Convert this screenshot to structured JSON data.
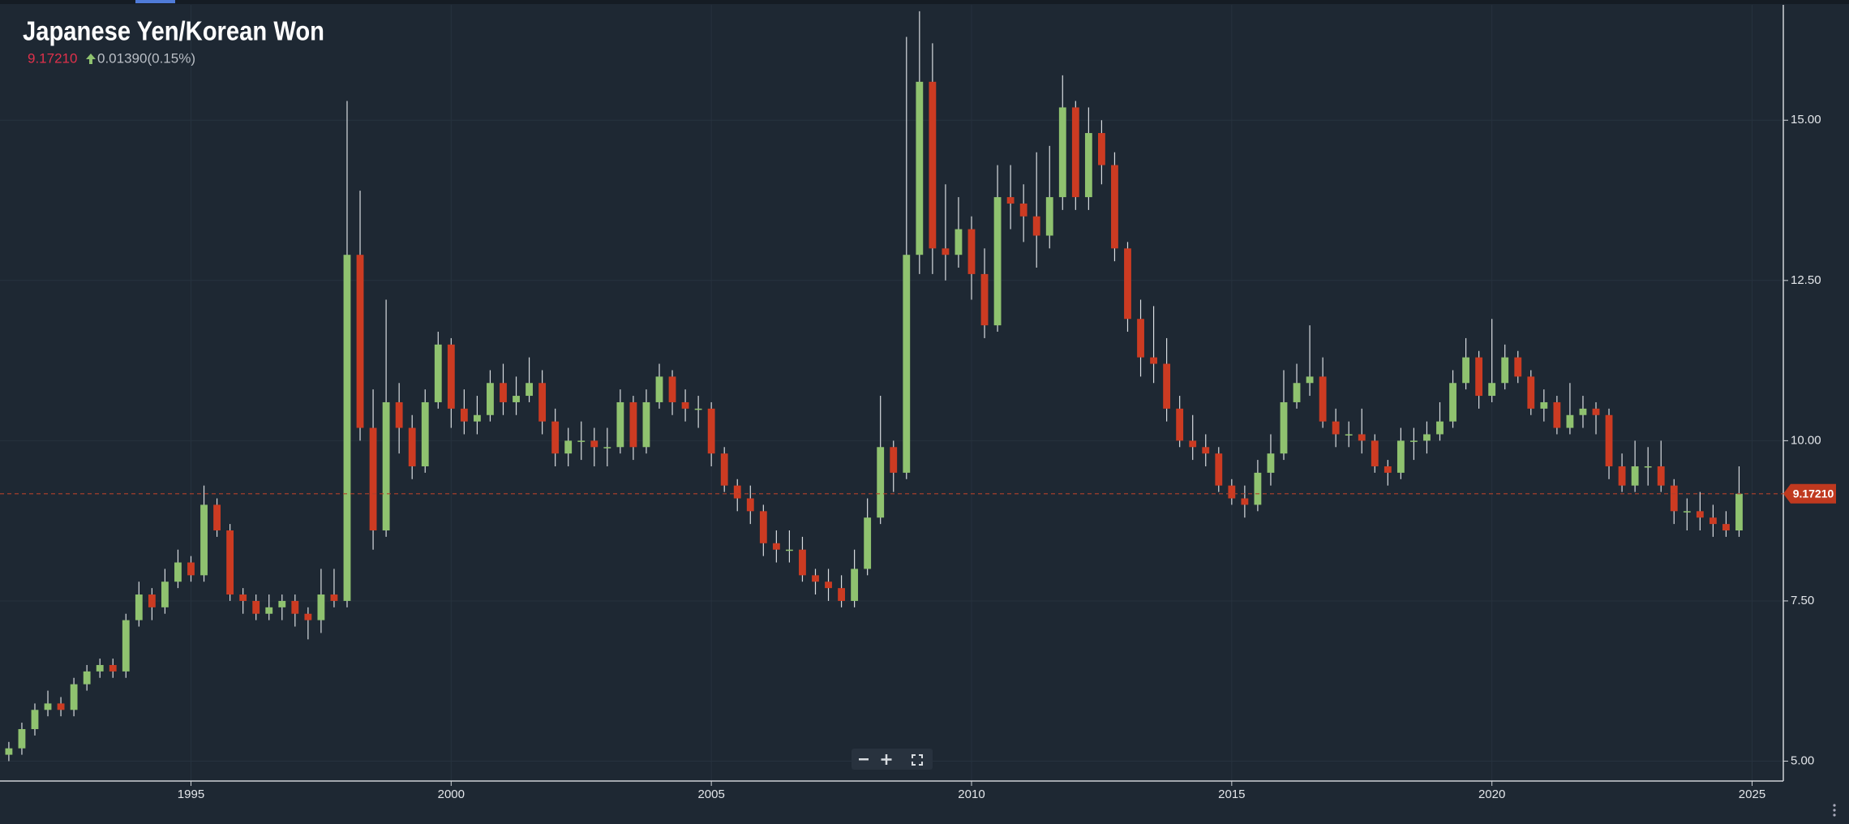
{
  "chart_data": {
    "type": "candlestick",
    "title": "Japanese Yen/Korean Won",
    "last_price": {
      "value": 9.1721,
      "label": "9.17210"
    },
    "change": "0.01390(0.15%)",
    "xlim": [
      1991.33,
      2025.6
    ],
    "xticks": [
      1995,
      2000,
      2005,
      2010,
      2015,
      2020,
      2025
    ],
    "ylim": [
      4.69,
      16.8
    ],
    "yticks": [
      {
        "value": 5,
        "label": "5.00"
      },
      {
        "value": 7.5,
        "label": "7.50"
      },
      {
        "value": 10,
        "label": "10.00"
      },
      {
        "value": 12.5,
        "label": "12.50"
      },
      {
        "value": 15,
        "label": "15.00"
      }
    ],
    "grid": true,
    "up_color": "#8fc26f",
    "down_color": "#cc3b22",
    "wick_color": "#d8dce0",
    "x": [
      1991.5,
      1991.75,
      1992,
      1992.25,
      1992.5,
      1992.75,
      1993,
      1993.25,
      1993.5,
      1993.75,
      1994,
      1994.25,
      1994.5,
      1994.75,
      1995,
      1995.25,
      1995.5,
      1995.75,
      1996,
      1996.25,
      1996.5,
      1996.75,
      1997,
      1997.25,
      1997.5,
      1997.75,
      1998,
      1998.25,
      1998.5,
      1998.75,
      1999,
      1999.25,
      1999.5,
      1999.75,
      2000,
      2000.25,
      2000.5,
      2000.75,
      2001,
      2001.25,
      2001.5,
      2001.75,
      2002,
      2002.25,
      2002.5,
      2002.75,
      2003,
      2003.25,
      2003.5,
      2003.75,
      2004,
      2004.25,
      2004.5,
      2004.75,
      2005,
      2005.25,
      2005.5,
      2005.75,
      2006,
      2006.25,
      2006.5,
      2006.75,
      2007,
      2007.25,
      2007.5,
      2007.75,
      2008,
      2008.25,
      2008.5,
      2008.75,
      2009,
      2009.25,
      2009.5,
      2009.75,
      2010,
      2010.25,
      2010.5,
      2010.75,
      2011,
      2011.25,
      2011.5,
      2011.75,
      2012,
      2012.25,
      2012.5,
      2012.75,
      2013,
      2013.25,
      2013.5,
      2013.75,
      2014,
      2014.25,
      2014.5,
      2014.75,
      2015,
      2015.25,
      2015.5,
      2015.75,
      2016,
      2016.25,
      2016.5,
      2016.75,
      2017,
      2017.25,
      2017.5,
      2017.75,
      2018,
      2018.25,
      2018.5,
      2018.75,
      2019,
      2019.25,
      2019.5,
      2019.75,
      2020,
      2020.25,
      2020.5,
      2020.75,
      2021,
      2021.25,
      2021.5,
      2021.75,
      2022,
      2022.25,
      2022.5,
      2022.75,
      2023,
      2023.25,
      2023.5,
      2023.75,
      2024,
      2024.25,
      2024.5,
      2024.75
    ],
    "open": [
      5.1,
      5.2,
      5.5,
      5.8,
      5.9,
      5.8,
      6.2,
      6.4,
      6.5,
      6.4,
      7.2,
      7.6,
      7.4,
      7.8,
      8.1,
      7.9,
      9.0,
      8.6,
      7.6,
      7.5,
      7.3,
      7.4,
      7.5,
      7.3,
      7.2,
      7.6,
      7.5,
      12.9,
      10.2,
      8.6,
      10.6,
      10.2,
      9.6,
      10.6,
      11.5,
      10.5,
      10.3,
      10.4,
      10.9,
      10.6,
      10.7,
      10.9,
      10.3,
      9.8,
      10.0,
      10.0,
      9.9,
      9.9,
      10.6,
      9.9,
      10.6,
      11.0,
      10.6,
      10.5,
      10.5,
      9.8,
      9.3,
      9.1,
      8.9,
      8.4,
      8.3,
      8.3,
      7.9,
      7.8,
      7.7,
      7.5,
      8.0,
      8.8,
      9.9,
      9.5,
      12.9,
      15.6,
      13.0,
      12.9,
      13.3,
      12.6,
      11.8,
      13.8,
      13.7,
      13.5,
      13.2,
      13.8,
      15.2,
      13.8,
      14.8,
      14.3,
      13.0,
      11.9,
      11.3,
      11.2,
      10.5,
      10.0,
      9.9,
      9.8,
      9.3,
      9.1,
      9.0,
      9.5,
      9.8,
      10.6,
      10.9,
      11.0,
      10.3,
      10.1,
      10.1,
      10.0,
      9.6,
      9.5,
      10.0,
      10.0,
      10.1,
      10.3,
      10.9,
      11.3,
      10.7,
      10.9,
      11.3,
      11.0,
      10.5,
      10.6,
      10.2,
      10.4,
      10.5,
      10.4,
      9.6,
      9.3,
      9.6,
      9.6,
      9.3,
      8.9,
      8.9,
      8.8,
      8.7,
      8.6
    ],
    "high": [
      5.3,
      5.6,
      5.9,
      6.1,
      6.0,
      6.3,
      6.5,
      6.6,
      6.6,
      7.3,
      7.8,
      7.7,
      8.0,
      8.3,
      8.2,
      9.3,
      9.1,
      8.7,
      7.7,
      7.6,
      7.6,
      7.6,
      7.6,
      7.4,
      8.0,
      8.0,
      15.3,
      13.9,
      10.8,
      12.2,
      10.9,
      10.4,
      10.8,
      11.7,
      11.6,
      10.8,
      10.7,
      11.1,
      11.2,
      11.0,
      11.3,
      11.1,
      10.5,
      10.2,
      10.3,
      10.2,
      10.2,
      10.8,
      10.7,
      10.8,
      11.2,
      11.1,
      10.8,
      10.7,
      10.6,
      9.9,
      9.4,
      9.3,
      9.0,
      8.6,
      8.6,
      8.5,
      8.0,
      8.0,
      7.9,
      8.3,
      9.1,
      10.7,
      10.0,
      16.3,
      16.7,
      16.2,
      14.0,
      13.8,
      13.5,
      13.0,
      14.3,
      14.3,
      14.0,
      14.5,
      14.6,
      15.7,
      15.3,
      15.2,
      15.0,
      14.5,
      13.1,
      12.2,
      12.1,
      11.6,
      10.7,
      10.4,
      10.1,
      9.9,
      9.4,
      9.3,
      9.7,
      10.1,
      11.1,
      11.2,
      11.8,
      11.3,
      10.5,
      10.3,
      10.5,
      10.1,
      9.7,
      10.2,
      10.2,
      10.3,
      10.6,
      11.1,
      11.6,
      11.4,
      11.9,
      11.5,
      11.4,
      11.1,
      10.8,
      10.7,
      10.9,
      10.7,
      10.6,
      10.5,
      9.8,
      10.0,
      9.9,
      10.0,
      9.4,
      9.1,
      9.2,
      9.0,
      8.9,
      9.6
    ],
    "low": [
      5.0,
      5.1,
      5.4,
      5.7,
      5.7,
      5.7,
      6.1,
      6.3,
      6.3,
      6.3,
      7.1,
      7.2,
      7.3,
      7.7,
      7.8,
      7.8,
      8.5,
      7.5,
      7.3,
      7.2,
      7.2,
      7.2,
      7.1,
      6.9,
      7.0,
      7.4,
      7.4,
      10.0,
      8.3,
      8.5,
      9.8,
      9.4,
      9.5,
      10.5,
      10.2,
      10.1,
      10.1,
      10.3,
      10.4,
      10.4,
      10.6,
      10.1,
      9.6,
      9.6,
      9.7,
      9.6,
      9.6,
      9.8,
      9.7,
      9.8,
      10.5,
      10.4,
      10.3,
      10.2,
      9.6,
      9.2,
      8.9,
      8.7,
      8.2,
      8.1,
      8.1,
      7.8,
      7.6,
      7.5,
      7.4,
      7.4,
      7.9,
      8.7,
      9.2,
      9.4,
      12.6,
      12.6,
      12.5,
      12.7,
      12.2,
      11.6,
      11.7,
      13.3,
      13.1,
      12.7,
      13.0,
      13.6,
      13.6,
      13.6,
      14.0,
      12.8,
      11.7,
      11.0,
      10.9,
      10.3,
      9.9,
      9.7,
      9.6,
      9.2,
      9.0,
      8.8,
      8.9,
      9.3,
      9.7,
      10.5,
      10.7,
      10.2,
      9.9,
      9.9,
      9.8,
      9.5,
      9.3,
      9.4,
      9.7,
      9.8,
      10.0,
      10.2,
      10.8,
      10.5,
      10.6,
      10.8,
      10.9,
      10.4,
      10.3,
      10.1,
      10.1,
      10.2,
      10.1,
      9.4,
      9.2,
      9.2,
      9.3,
      9.2,
      8.7,
      8.6,
      8.6,
      8.5,
      8.5,
      8.5
    ],
    "close": [
      5.2,
      5.5,
      5.8,
      5.9,
      5.8,
      6.2,
      6.4,
      6.5,
      6.4,
      7.2,
      7.6,
      7.4,
      7.8,
      8.1,
      7.9,
      9.0,
      8.6,
      7.6,
      7.5,
      7.3,
      7.4,
      7.5,
      7.3,
      7.2,
      7.6,
      7.5,
      12.9,
      10.2,
      8.6,
      10.6,
      10.2,
      9.6,
      10.6,
      11.5,
      10.5,
      10.3,
      10.4,
      10.9,
      10.6,
      10.7,
      10.9,
      10.3,
      9.8,
      10.0,
      10.0,
      9.9,
      9.9,
      10.6,
      9.9,
      10.6,
      11.0,
      10.6,
      10.5,
      10.5,
      9.8,
      9.3,
      9.1,
      8.9,
      8.4,
      8.3,
      8.3,
      7.9,
      7.8,
      7.7,
      7.5,
      8.0,
      8.8,
      9.9,
      9.5,
      12.9,
      15.6,
      13.0,
      12.9,
      13.3,
      12.6,
      11.8,
      13.8,
      13.7,
      13.5,
      13.2,
      13.8,
      15.2,
      13.8,
      14.8,
      14.3,
      13.0,
      11.9,
      11.3,
      11.2,
      10.5,
      10.0,
      9.9,
      9.8,
      9.3,
      9.1,
      9.0,
      9.5,
      9.8,
      10.6,
      10.9,
      11.0,
      10.3,
      10.1,
      10.1,
      10.0,
      9.6,
      9.5,
      10.0,
      10.0,
      10.1,
      10.3,
      10.9,
      11.3,
      10.7,
      10.9,
      11.3,
      11.0,
      10.5,
      10.6,
      10.2,
      10.4,
      10.5,
      10.4,
      9.6,
      9.3,
      9.6,
      9.6,
      9.3,
      8.9,
      8.9,
      8.8,
      8.7,
      8.6,
      9.1721
    ]
  }
}
